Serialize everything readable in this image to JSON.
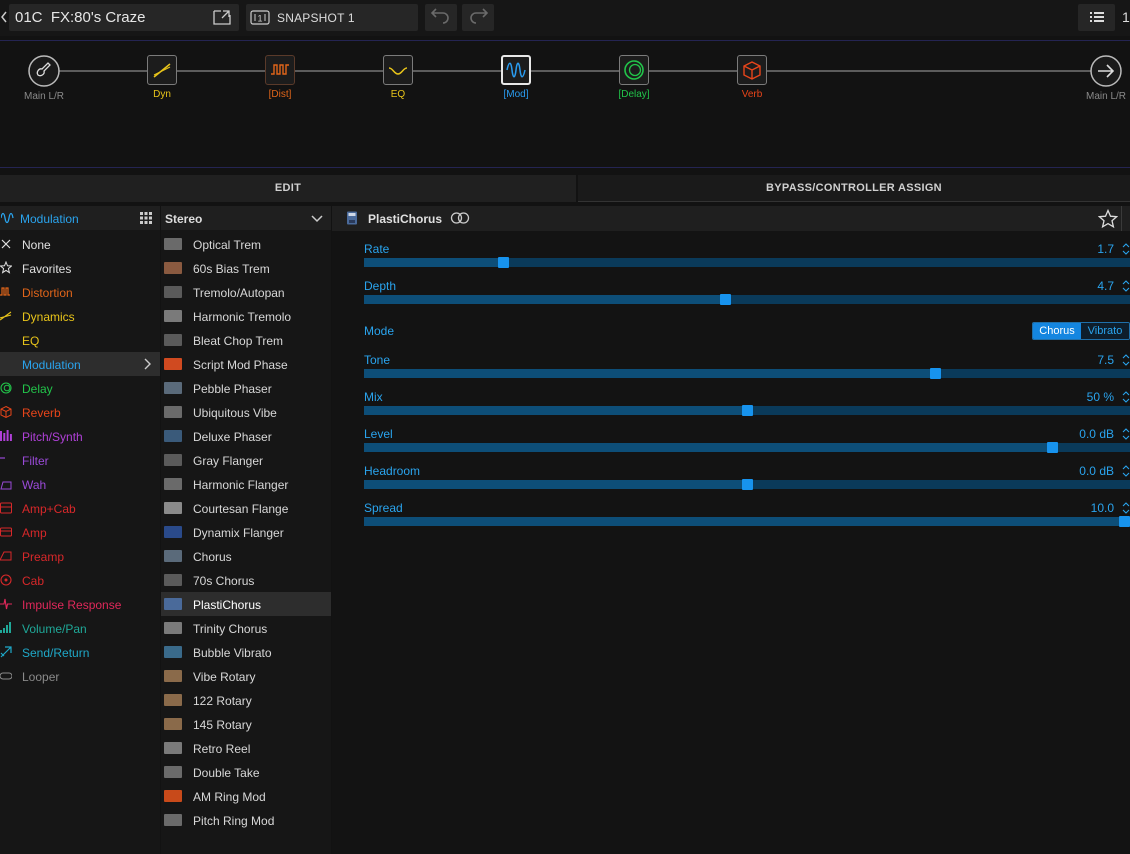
{
  "topbar": {
    "preset_name": "01C  FX:80's Craze",
    "snapshot_label": "SNAPSHOT 1",
    "truncated_number": "1"
  },
  "chain": {
    "nodes": [
      {
        "label": "Main L/R",
        "color": "#8a8a8a",
        "icon": "guitar-input-icon"
      },
      {
        "label": "Dyn",
        "color": "#e8c41a",
        "icon": "dynamics-icon"
      },
      {
        "label": "[Dist]",
        "color": "#e0651a",
        "icon": "distortion-icon"
      },
      {
        "label": "EQ",
        "color": "#e8c41a",
        "icon": "eq-icon"
      },
      {
        "label": "[Mod]",
        "color": "#2a9cf0",
        "icon": "modulation-icon"
      },
      {
        "label": "[Delay]",
        "color": "#22c44a",
        "icon": "delay-icon"
      },
      {
        "label": "Verb",
        "color": "#e8451a",
        "icon": "reverb-icon"
      },
      {
        "label": "Main L/R",
        "color": "#8a8a8a",
        "icon": "output-arrow-icon"
      }
    ]
  },
  "tabs": {
    "edit": "EDIT",
    "bypass": "BYPASS/CONTROLLER ASSIGN"
  },
  "categories": {
    "header": "Modulation",
    "items": [
      {
        "label": "None",
        "color": "#e0e0e0",
        "icon": "x-icon"
      },
      {
        "label": "Favorites",
        "color": "#e0e0e0",
        "icon": "star-icon"
      },
      {
        "label": "Distortion",
        "color": "#e0651a",
        "icon": "distortion-icon"
      },
      {
        "label": "Dynamics",
        "color": "#e8c41a",
        "icon": "dynamics-icon"
      },
      {
        "label": "EQ",
        "color": "#e8c41a",
        "icon": "eq-icon"
      },
      {
        "label": "Modulation",
        "color": "#2aa4ee",
        "icon": "modulation-icon"
      },
      {
        "label": "Delay",
        "color": "#22c44a",
        "icon": "delay-icon"
      },
      {
        "label": "Reverb",
        "color": "#e8451a",
        "icon": "reverb-icon"
      },
      {
        "label": "Pitch/Synth",
        "color": "#b040d8",
        "icon": "pitch-icon"
      },
      {
        "label": "Filter",
        "color": "#9a4ad8",
        "icon": "filter-icon"
      },
      {
        "label": "Wah",
        "color": "#9a4ad8",
        "icon": "wah-icon"
      },
      {
        "label": "Amp+Cab",
        "color": "#d8282a",
        "icon": "amp-cab-icon"
      },
      {
        "label": "Amp",
        "color": "#d8282a",
        "icon": "amp-icon"
      },
      {
        "label": "Preamp",
        "color": "#d8282a",
        "icon": "preamp-icon"
      },
      {
        "label": "Cab",
        "color": "#d8282a",
        "icon": "cab-icon"
      },
      {
        "label": "Impulse Response",
        "color": "#e0285a",
        "icon": "impulse-response-icon"
      },
      {
        "label": "Volume/Pan",
        "color": "#1fa898",
        "icon": "volume-pan-icon"
      },
      {
        "label": "Send/Return",
        "color": "#1fa8c8",
        "icon": "send-return-icon"
      },
      {
        "label": "Looper",
        "color": "#8a8a8a",
        "icon": "looper-icon"
      }
    ]
  },
  "models": {
    "header": "Stereo",
    "items": [
      {
        "label": "Optical Trem",
        "thumb": "#6a6a6a"
      },
      {
        "label": "60s Bias Trem",
        "thumb": "#8a5a40"
      },
      {
        "label": "Tremolo/Autopan",
        "thumb": "#5a5a5a"
      },
      {
        "label": "Harmonic Tremolo",
        "thumb": "#7a7a7a"
      },
      {
        "label": "Bleat Chop Trem",
        "thumb": "#5a5a5a"
      },
      {
        "label": "Script Mod Phase",
        "thumb": "#d04a20"
      },
      {
        "label": "Pebble Phaser",
        "thumb": "#5a6a7a"
      },
      {
        "label": "Ubiquitous Vibe",
        "thumb": "#6a6a6a"
      },
      {
        "label": "Deluxe Phaser",
        "thumb": "#3a5a7a"
      },
      {
        "label": "Gray Flanger",
        "thumb": "#5a5a5a"
      },
      {
        "label": "Harmonic Flanger",
        "thumb": "#6a6a6a"
      },
      {
        "label": "Courtesan Flange",
        "thumb": "#8a8a8a"
      },
      {
        "label": "Dynamix Flanger",
        "thumb": "#2a4a8a"
      },
      {
        "label": "Chorus",
        "thumb": "#5a6a7a"
      },
      {
        "label": "70s Chorus",
        "thumb": "#5a5a5a"
      },
      {
        "label": "PlastiChorus",
        "thumb": "#4a6a9a"
      },
      {
        "label": "Trinity Chorus",
        "thumb": "#7a7a7a"
      },
      {
        "label": "Bubble Vibrato",
        "thumb": "#3a6a8a"
      },
      {
        "label": "Vibe Rotary",
        "thumb": "#8a6a4a"
      },
      {
        "label": "122 Rotary",
        "thumb": "#8a6a4a"
      },
      {
        "label": "145 Rotary",
        "thumb": "#8a6a4a"
      },
      {
        "label": "Retro Reel",
        "thumb": "#7a7a7a"
      },
      {
        "label": "Double Take",
        "thumb": "#6a6a6a"
      },
      {
        "label": "AM Ring Mod",
        "thumb": "#c84a1a"
      },
      {
        "label": "Pitch Ring Mod",
        "thumb": "#6a6a6a"
      }
    ]
  },
  "params": {
    "title": "PlastiChorus",
    "mode_label": "Mode",
    "mode_options": [
      "Chorus",
      "Vibrato"
    ],
    "mode_selected": 0,
    "sliders": [
      {
        "label": "Rate",
        "value": "1.7",
        "level": 0.178
      },
      {
        "label": "Depth",
        "value": "4.7",
        "level": 0.472
      },
      {
        "label": "Tone",
        "value": "7.5",
        "level": 0.75
      },
      {
        "label": "Mix",
        "value": "50 %",
        "level": 0.5
      },
      {
        "label": "Level",
        "value": "0.0 dB",
        "level": 0.905
      },
      {
        "label": "Headroom",
        "value": "0.0 dB",
        "level": 0.5
      },
      {
        "label": "Spread",
        "value": "10.0",
        "level": 1.0
      }
    ]
  }
}
